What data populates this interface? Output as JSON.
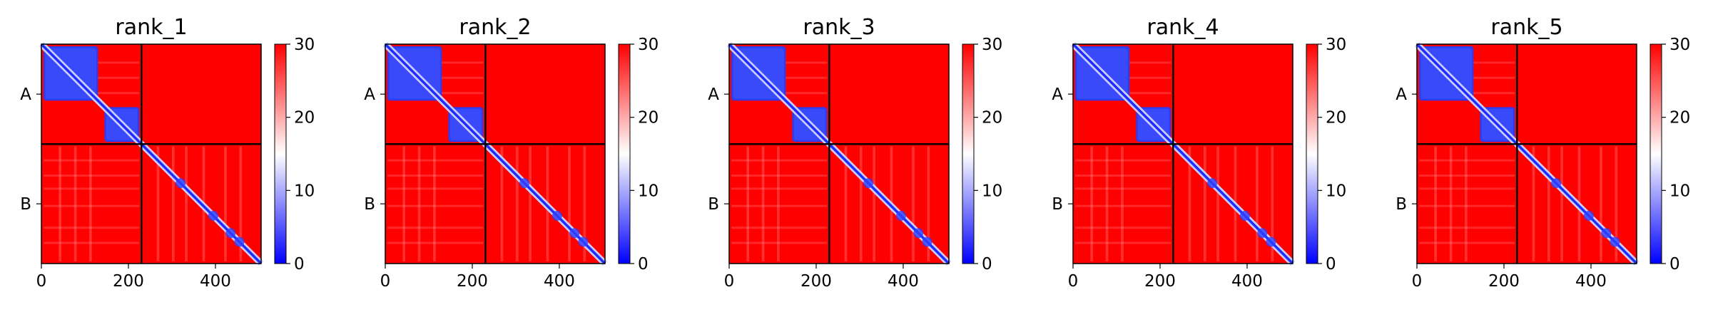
{
  "colorbar": {
    "colors": [
      "#0000ff",
      "#ffffff",
      "#ff0000"
    ],
    "min": 0,
    "max": 30,
    "ticks": [
      0,
      10,
      20,
      30
    ]
  },
  "chart_data": [
    {
      "type": "heatmap",
      "title": "rank_1",
      "xlabel": "",
      "ylabel": "",
      "xlim": [
        0,
        505
      ],
      "ylim": [
        505,
        0
      ],
      "x_ticks": [
        0,
        200,
        400
      ],
      "chains": [
        {
          "name": "A",
          "start": 0,
          "end": 230
        },
        {
          "name": "B",
          "start": 230,
          "end": 505
        }
      ],
      "chain_boundaries": [
        230
      ],
      "blue_blocks": [
        [
          5,
          130
        ],
        [
          145,
          225
        ]
      ],
      "pae_range": [
        0,
        30
      ],
      "grid": false
    },
    {
      "type": "heatmap",
      "title": "rank_2",
      "xlabel": "",
      "ylabel": "",
      "xlim": [
        0,
        505
      ],
      "ylim": [
        505,
        0
      ],
      "x_ticks": [
        0,
        200,
        400
      ],
      "chains": [
        {
          "name": "A",
          "start": 0,
          "end": 230
        },
        {
          "name": "B",
          "start": 230,
          "end": 505
        }
      ],
      "chain_boundaries": [
        230
      ],
      "blue_blocks": [
        [
          5,
          130
        ],
        [
          145,
          225
        ]
      ],
      "pae_range": [
        0,
        30
      ],
      "grid": false
    },
    {
      "type": "heatmap",
      "title": "rank_3",
      "xlabel": "",
      "ylabel": "",
      "xlim": [
        0,
        505
      ],
      "ylim": [
        505,
        0
      ],
      "x_ticks": [
        0,
        200,
        400
      ],
      "chains": [
        {
          "name": "A",
          "start": 0,
          "end": 230
        },
        {
          "name": "B",
          "start": 230,
          "end": 505
        }
      ],
      "chain_boundaries": [
        230
      ],
      "blue_blocks": [
        [
          5,
          130
        ],
        [
          145,
          225
        ]
      ],
      "pae_range": [
        0,
        30
      ],
      "grid": false
    },
    {
      "type": "heatmap",
      "title": "rank_4",
      "xlabel": "",
      "ylabel": "",
      "xlim": [
        0,
        505
      ],
      "ylim": [
        505,
        0
      ],
      "x_ticks": [
        0,
        200,
        400
      ],
      "chains": [
        {
          "name": "A",
          "start": 0,
          "end": 230
        },
        {
          "name": "B",
          "start": 230,
          "end": 505
        }
      ],
      "chain_boundaries": [
        230
      ],
      "blue_blocks": [
        [
          5,
          130
        ],
        [
          145,
          225
        ]
      ],
      "pae_range": [
        0,
        30
      ],
      "grid": false
    },
    {
      "type": "heatmap",
      "title": "rank_5",
      "xlabel": "",
      "ylabel": "",
      "xlim": [
        0,
        505
      ],
      "ylim": [
        505,
        0
      ],
      "x_ticks": [
        0,
        200,
        400
      ],
      "chains": [
        {
          "name": "A",
          "start": 0,
          "end": 230
        },
        {
          "name": "B",
          "start": 230,
          "end": 505
        }
      ],
      "chain_boundaries": [
        230
      ],
      "blue_blocks": [
        [
          5,
          130
        ],
        [
          145,
          225
        ]
      ],
      "pae_range": [
        0,
        30
      ],
      "grid": false
    }
  ]
}
